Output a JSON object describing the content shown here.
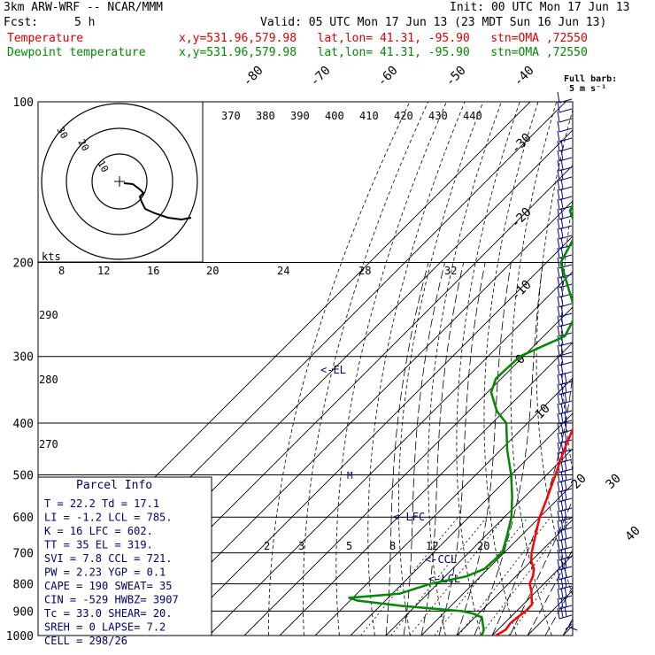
{
  "header": {
    "model": "3km ARW-WRF -- NCAR/MMM",
    "init": "Init: 00 UTC Mon 17 Jun 13",
    "fcst_label": "Fcst:",
    "fcst_value": "5 h",
    "valid": "Valid: 05 UTC Mon 17 Jun 13 (23 MDT Sun 16 Jun 13)",
    "temp_label": "Temperature",
    "temp_info": "x,y=531.96,579.98   lat,lon= 41.31, -95.90   stn=OMA ,72550",
    "dew_label": "Dewpoint temperature",
    "dew_info": "x,y=531.96,579.98   lat,lon= 41.31, -95.90   stn=OMA ,72550",
    "barb_key_title": "Full barb:",
    "barb_key_units": "5 m s⁻¹"
  },
  "colors": {
    "temperature": "#ff0000",
    "dewpoint": "#008800",
    "barbs": "#000077",
    "labels": "#00006a"
  },
  "chart_data": {
    "type": "line",
    "title": "",
    "x_axis": "temperature (°C), skewed",
    "y_axis": "pressure (hPa), log scale",
    "pressure_ticks": [
      100,
      200,
      300,
      400,
      500,
      600,
      700,
      800,
      900,
      1000
    ],
    "isotherm_labels": [
      "-80",
      "-70",
      "-60",
      "-50",
      "-40",
      "-30",
      "-20",
      "-10",
      "0",
      "10",
      "20",
      "30",
      "40"
    ],
    "theta_labels": [
      "370",
      "380",
      "390",
      "400",
      "410",
      "420",
      "430",
      "440"
    ],
    "theta_labels_lower": [
      "290",
      "280",
      "270"
    ],
    "mixing_ratio_labels": [
      "2",
      "3",
      "5",
      "8",
      "12",
      "20"
    ],
    "hodo_label": "kts",
    "hodo_ring_labels": [
      "30",
      "20",
      "10"
    ],
    "hodo_axis_labels": [
      "8",
      "12",
      "16",
      "20",
      "24",
      "28",
      "32"
    ],
    "level_markers": [
      "EL",
      "LFC",
      "CCL",
      "LCL"
    ],
    "series": [
      {
        "name": "Temperature",
        "points": [
          [
            1000,
            21.0
          ],
          [
            975,
            22.2
          ],
          [
            950,
            21.7
          ],
          [
            925,
            22.0
          ],
          [
            900,
            22.6
          ],
          [
            875,
            22.5
          ],
          [
            850,
            20.5
          ],
          [
            825,
            18.5
          ],
          [
            800,
            16.0
          ],
          [
            775,
            14.8
          ],
          [
            750,
            13.0
          ],
          [
            725,
            10.0
          ],
          [
            700,
            7.8
          ],
          [
            650,
            4.0
          ],
          [
            600,
            0.0
          ],
          [
            550,
            -3.5
          ],
          [
            500,
            -7.5
          ],
          [
            450,
            -12.0
          ],
          [
            400,
            -16.5
          ],
          [
            350,
            -22.0
          ],
          [
            300,
            -27.5
          ],
          [
            250,
            -33.0
          ],
          [
            200,
            -45.0
          ],
          [
            180,
            -49.5
          ],
          [
            160,
            -53.0
          ],
          [
            150,
            -55.0
          ],
          [
            130,
            -59.0
          ],
          [
            115,
            -64.0
          ],
          [
            100,
            -68.0
          ]
        ]
      },
      {
        "name": "Dewpoint temperature",
        "points": [
          [
            1000,
            17.1
          ],
          [
            975,
            16.0
          ],
          [
            950,
            14.0
          ],
          [
            925,
            12.0
          ],
          [
            910,
            8.5
          ],
          [
            900,
            4.5
          ],
          [
            880,
            -14.0
          ],
          [
            860,
            -28.0
          ],
          [
            850,
            -31.0
          ],
          [
            835,
            -18.0
          ],
          [
            800,
            -12.0
          ],
          [
            775,
            -4.0
          ],
          [
            750,
            -1.0
          ],
          [
            700,
            -0.5
          ],
          [
            650,
            -4.0
          ],
          [
            600,
            -8.0
          ],
          [
            550,
            -13.5
          ],
          [
            500,
            -20.0
          ],
          [
            450,
            -28.0
          ],
          [
            400,
            -36.0
          ],
          [
            380,
            -42.0
          ],
          [
            350,
            -49.0
          ],
          [
            330,
            -51.5
          ],
          [
            300,
            -51.0
          ],
          [
            275,
            -44.0
          ],
          [
            250,
            -47.0
          ],
          [
            200,
            -66.0
          ],
          [
            175,
            -70.0
          ],
          [
            160,
            -78.0
          ],
          [
            140,
            -82.0
          ],
          [
            120,
            -86.0
          ],
          [
            100,
            -80.0
          ]
        ]
      }
    ],
    "parcel_info": {
      "title": "Parcel Info",
      "rows": [
        "T    =   22.2  Td =  17.1",
        "LI   =   -1.2  LCL =  785.",
        "K    =     16  LFC =  602.",
        "TT   =     35  EL  =  319.",
        "SVI  =    7.8  CCL =  721.",
        "PW   =   2.23  YGP =   0.1",
        "CAPE =    190  SWEAT=   35",
        "CIN  =   -529  HWBZ= 3907",
        "Tc   =   33.0  SHEAR=  20.",
        "SREH =      0  LAPSE=  7.2",
        "CELL = 298/26"
      ]
    }
  }
}
